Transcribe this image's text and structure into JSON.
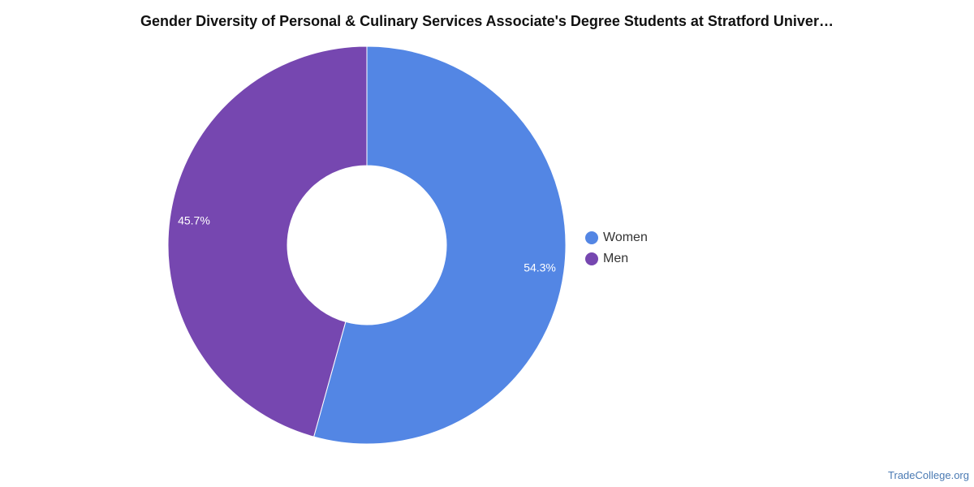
{
  "title": "Gender Diversity of Personal & Culinary Services Associate's Degree Students at Stratford Univer…",
  "source": "TradeCollege.org",
  "chart_data": {
    "type": "pie",
    "variant": "donut",
    "title": "Gender Diversity of Personal & Culinary Services Associate's Degree Students at Stratford Univer…",
    "categories": [
      "Women",
      "Men"
    ],
    "values": [
      54.3,
      45.7
    ],
    "labels": [
      "54.3%",
      "45.7%"
    ],
    "colors": [
      "#5386e4",
      "#7647b0"
    ],
    "legend_position": "right",
    "start_angle": "top",
    "direction": "clockwise"
  }
}
